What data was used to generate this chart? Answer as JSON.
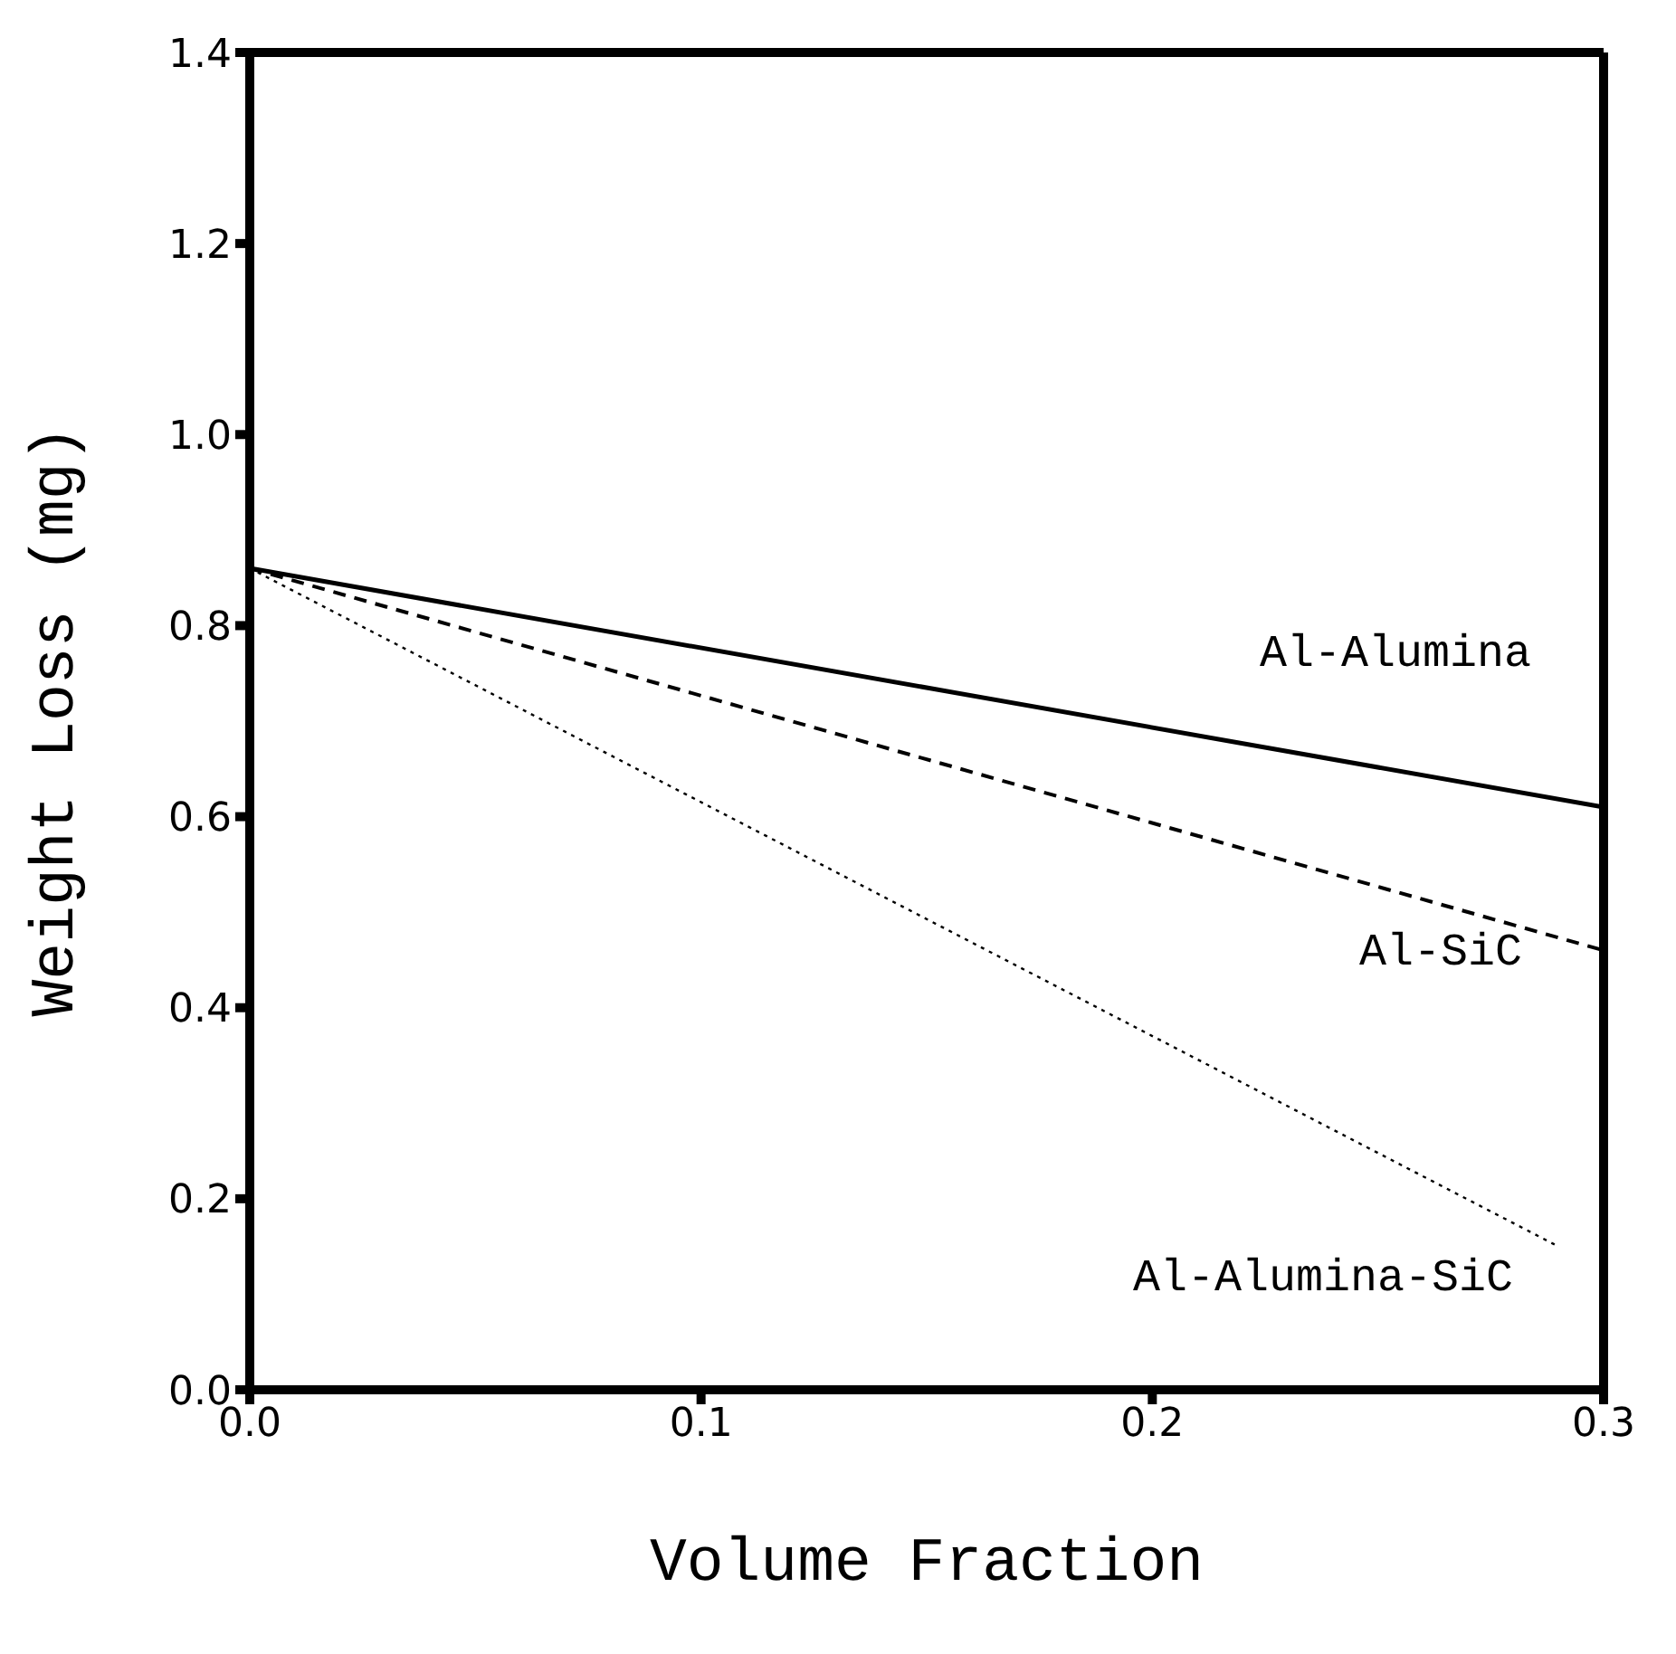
{
  "chart_data": {
    "type": "line",
    "xlabel": "Volume Fraction",
    "ylabel": "Weight Loss (mg)",
    "xlim": [
      0,
      0.3
    ],
    "ylim": [
      0,
      1.4
    ],
    "xticks": [
      {
        "value": 0,
        "label": "0.0"
      },
      0.1,
      0.2,
      0.3
    ],
    "yticks": [
      {
        "value": 0,
        "label": "0.0"
      },
      0.2,
      0.4,
      0.6,
      0.8,
      {
        "value": 1,
        "label": "1.0"
      },
      1.2,
      1.4
    ],
    "marker": "none",
    "series": [
      {
        "name": "Al-Alumina",
        "color": "#000000",
        "line_style": "solid",
        "x": [
          0,
          0.3
        ],
        "values": [
          0.86,
          0.61
        ]
      },
      {
        "name": "Al-SiC",
        "color": "#000000",
        "line_style": "dashed",
        "x": [
          0,
          0.3
        ],
        "values": [
          0.86,
          0.46
        ]
      },
      {
        "name": "Al-Alumina-SiC",
        "color": "#000000",
        "line_style": "dotted",
        "x": [
          0,
          0.29
        ],
        "values": [
          0.86,
          0.15
        ]
      }
    ]
  }
}
